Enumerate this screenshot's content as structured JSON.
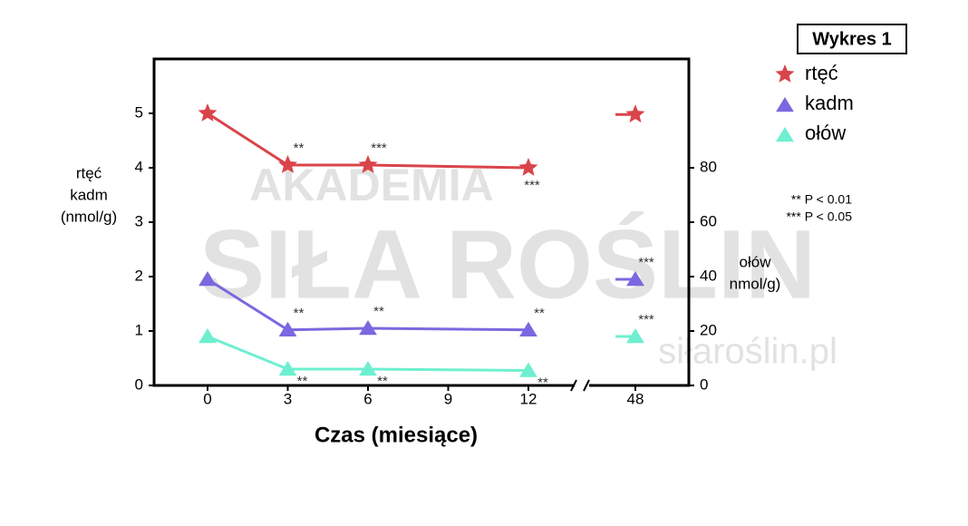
{
  "chart_data": {
    "type": "line",
    "badge": "Wykres 1",
    "x_label": "Czas (miesiące)",
    "y_label": [
      "rtęć",
      "kadm",
      "(nmol/g)"
    ],
    "y2_label": [
      "ołów",
      "nmol/g)"
    ],
    "notes": [
      "** P < 0.01",
      "*** P < 0.05"
    ],
    "watermark": [
      "AKADEMIA",
      "SIŁA ROŚLIN",
      "siłaroślin.pl"
    ],
    "x": [
      0,
      3,
      6,
      12,
      48
    ],
    "xlim": [
      -2,
      50
    ],
    "x_break": [
      14,
      46
    ],
    "xticks": [
      0,
      3,
      6,
      9,
      12,
      48
    ],
    "ylim": [
      0,
      6
    ],
    "yticks": [
      0,
      1,
      2,
      3,
      4,
      5
    ],
    "y2lim": [
      0,
      120
    ],
    "y2ticks": [
      0,
      20,
      40,
      60,
      80
    ],
    "series": [
      {
        "name": "rtęć",
        "color": "#d9444a",
        "marker": "star",
        "values": [
          5,
          4.05,
          4.05,
          4,
          4.98
        ],
        "significance": [
          null,
          "**",
          "***",
          "***",
          null
        ]
      },
      {
        "name": "kadm",
        "color": "#7b68e0",
        "marker": "triangle",
        "values": [
          1.95,
          1.02,
          1.05,
          1.02,
          1.95
        ],
        "significance": [
          null,
          "**",
          "**",
          "**",
          "***"
        ]
      },
      {
        "name": "ołów",
        "color": "#6eefd0",
        "marker": "triangle",
        "axis": "y2",
        "values": [
          18,
          6,
          6,
          5.5,
          18
        ],
        "significance": [
          null,
          "**",
          "**",
          "**",
          "***"
        ]
      }
    ]
  }
}
